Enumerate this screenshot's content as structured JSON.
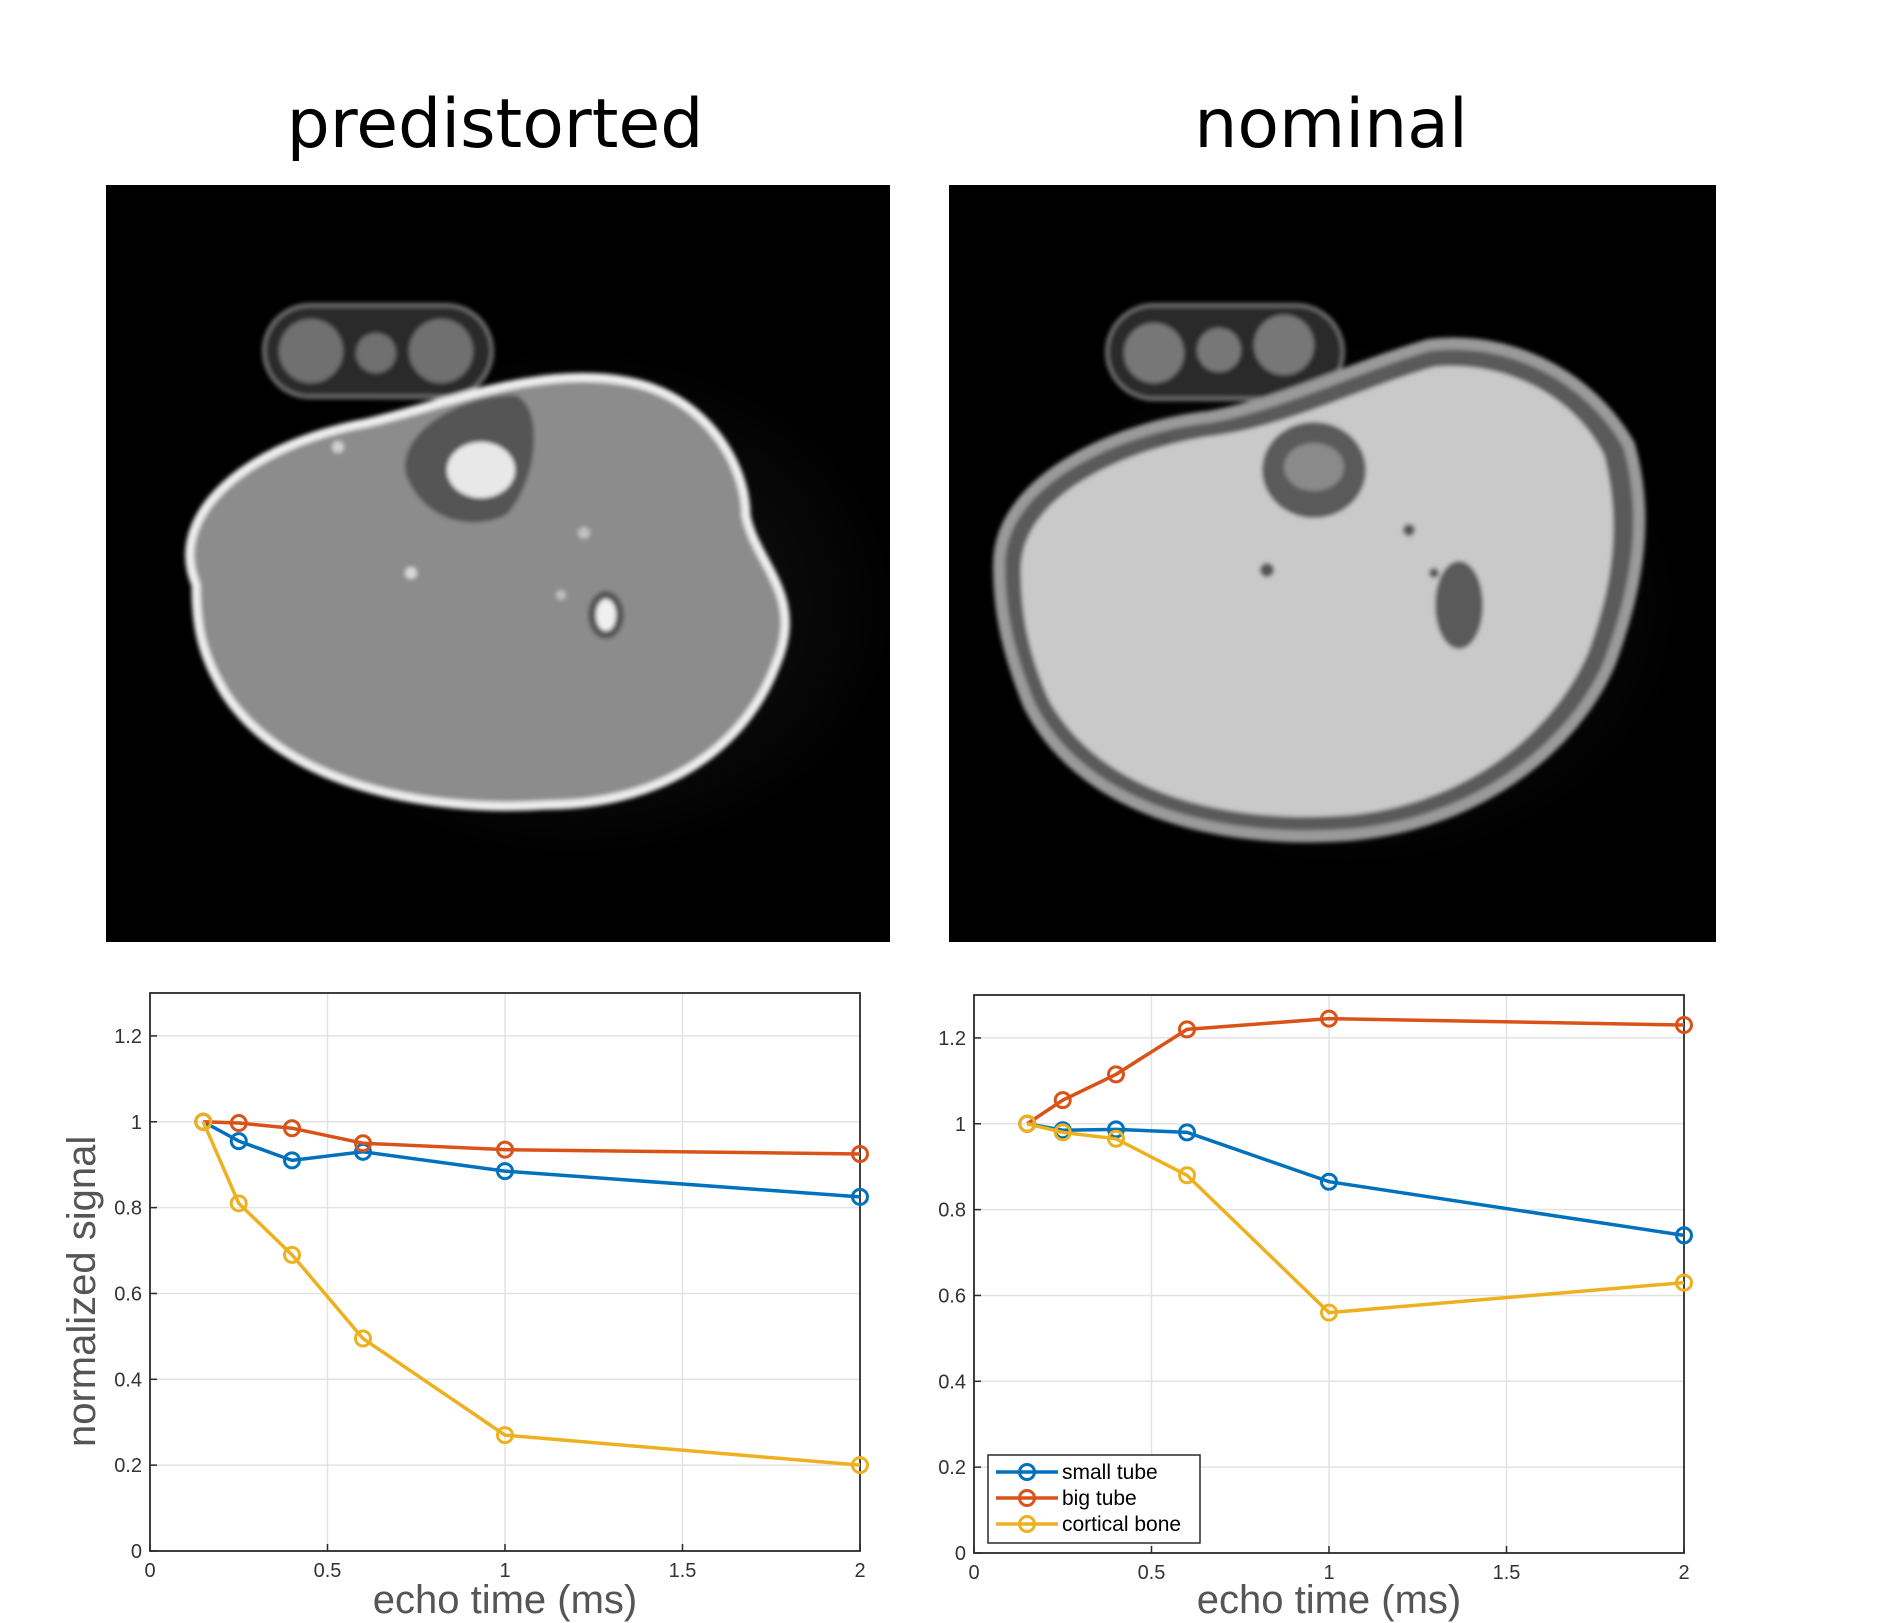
{
  "figure": {
    "titles": [
      "predistorted",
      "nominal"
    ]
  },
  "colors": {
    "small_tube": "#0072BD",
    "big_tube": "#D95319",
    "cortical_bone": "#EDB120",
    "grid": "#e3e3e3",
    "axis": "#2a2a2a",
    "label": "#555555"
  },
  "chart_data": [
    {
      "type": "line",
      "panel": "predistorted",
      "xlabel": "echo time (ms)",
      "ylabel": "normalized signal",
      "xlim": [
        0,
        2
      ],
      "ylim": [
        0,
        1.3
      ],
      "xticks": [
        0,
        0.5,
        1,
        1.5,
        2
      ],
      "xtick_labels": [
        "0",
        "0.5",
        "1",
        "1.5",
        "2"
      ],
      "yticks": [
        0,
        0.2,
        0.4,
        0.6,
        0.8,
        1,
        1.2
      ],
      "ytick_labels": [
        "0",
        "0.2",
        "0.4",
        "0.6",
        "0.8",
        "1",
        "1.2"
      ],
      "grid": true,
      "legend": null,
      "x": [
        0.15,
        0.25,
        0.4,
        0.6,
        1,
        2
      ],
      "series": [
        {
          "name": "small tube",
          "color_key": "small_tube",
          "values": [
            1.0,
            0.955,
            0.91,
            0.93,
            0.885,
            0.825
          ]
        },
        {
          "name": "big tube",
          "color_key": "big_tube",
          "values": [
            1.0,
            0.997,
            0.985,
            0.95,
            0.935,
            0.925
          ]
        },
        {
          "name": "cortical bone",
          "color_key": "cortical_bone",
          "values": [
            1.0,
            0.81,
            0.69,
            0.495,
            0.27,
            0.2
          ]
        }
      ]
    },
    {
      "type": "line",
      "panel": "nominal",
      "xlabel": "echo time (ms)",
      "ylabel": "",
      "xlim": [
        0,
        2
      ],
      "ylim": [
        0,
        1.3
      ],
      "xticks": [
        0,
        0.5,
        1,
        1.5,
        2
      ],
      "xtick_labels": [
        "0",
        "0.5",
        "1",
        "1.5",
        "2"
      ],
      "yticks": [
        0,
        0.2,
        0.4,
        0.6,
        0.8,
        1,
        1.2
      ],
      "ytick_labels": [
        "0",
        "0.2",
        "0.4",
        "0.6",
        "0.8",
        "1",
        "1.2"
      ],
      "grid": true,
      "legend": "bottom-left",
      "x": [
        0.15,
        0.25,
        0.4,
        0.6,
        1,
        2
      ],
      "series": [
        {
          "name": "small tube",
          "color_key": "small_tube",
          "values": [
            1.0,
            0.985,
            0.987,
            0.98,
            0.865,
            0.74
          ]
        },
        {
          "name": "big tube",
          "color_key": "big_tube",
          "values": [
            1.0,
            1.055,
            1.115,
            1.22,
            1.245,
            1.23
          ]
        },
        {
          "name": "cortical bone",
          "color_key": "cortical_bone",
          "values": [
            1.0,
            0.98,
            0.965,
            0.88,
            0.56,
            0.63
          ]
        }
      ]
    }
  ]
}
